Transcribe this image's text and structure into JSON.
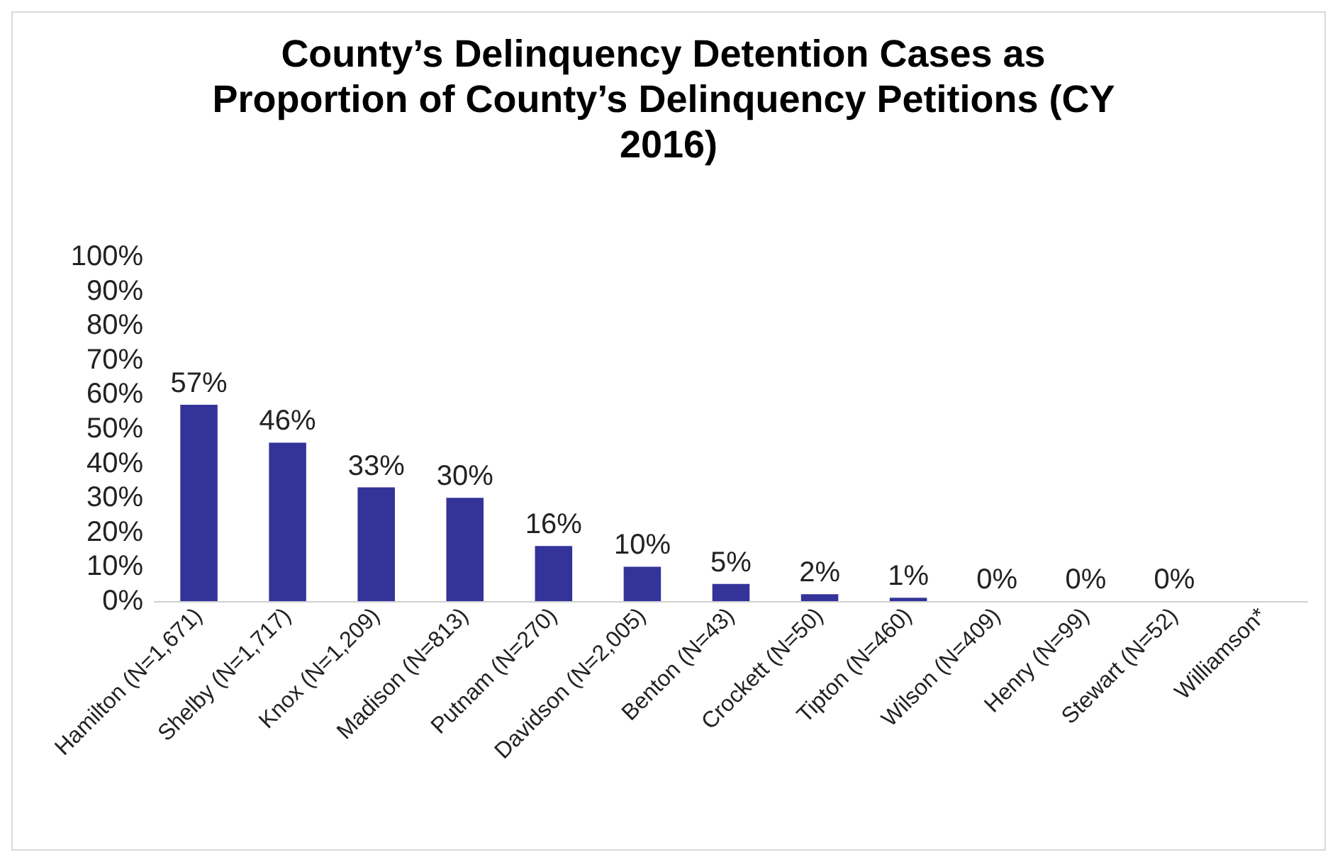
{
  "chart_data": {
    "type": "bar",
    "title": "County’s Delinquency Detention Cases as Proportion of County’s Delinquency Petitions (CY 2016)",
    "categories": [
      "Hamilton (N=1,671)",
      "Shelby (N=1,717)",
      "Knox (N=1,209)",
      "Madison (N=813)",
      "Putnam (N=270)",
      "Davidson (N=2,005)",
      "Benton (N=43)",
      "Crockett (N=50)",
      "Tipton (N=460)",
      "Wilson (N=409)",
      "Henry (N=99)",
      "Stewart (N=52)",
      "Williamson*"
    ],
    "values": [
      57,
      46,
      33,
      30,
      16,
      10,
      5,
      2,
      1,
      0,
      0,
      0,
      null
    ],
    "value_labels": [
      "57%",
      "46%",
      "33%",
      "30%",
      "16%",
      "10%",
      "5%",
      "2%",
      "1%",
      "0%",
      "0%",
      "0%",
      null
    ],
    "color": "#333399",
    "ylim": [
      0,
      100
    ],
    "yticks": [
      {
        "value": 0,
        "label": "0%"
      },
      {
        "value": 10,
        "label": "10%"
      },
      {
        "value": 20,
        "label": "20%"
      },
      {
        "value": 30,
        "label": "30%"
      },
      {
        "value": 40,
        "label": "40%"
      },
      {
        "value": 50,
        "label": "50%"
      },
      {
        "value": 60,
        "label": "60%"
      },
      {
        "value": 70,
        "label": "70%"
      },
      {
        "value": 80,
        "label": "80%"
      },
      {
        "value": 90,
        "label": "90%"
      },
      {
        "value": 100,
        "label": "100%"
      }
    ],
    "grid": false
  }
}
